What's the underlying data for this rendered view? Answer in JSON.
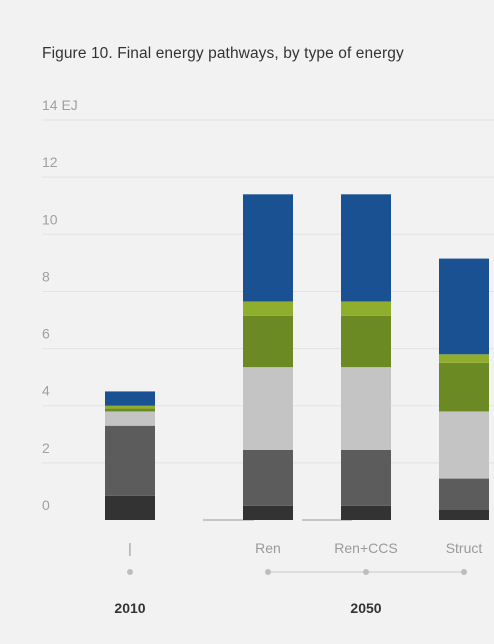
{
  "title": "Figure 10.  Final energy pathways, by type of energy",
  "chart_data": {
    "type": "bar",
    "stacked": true,
    "unit": "EJ",
    "ylim": [
      0,
      14
    ],
    "yticks": [
      0,
      2,
      4,
      6,
      8,
      10,
      12,
      14
    ],
    "grid": true,
    "categories": [
      "|",
      "Ren",
      "Ren+CCS",
      "Struct"
    ],
    "groups": [
      {
        "label": "2010",
        "categories": [
          "|"
        ]
      },
      {
        "label": "2050",
        "categories": [
          "Ren",
          "Ren+CCS",
          "Struct"
        ]
      }
    ],
    "series": [
      {
        "color": "#333333",
        "values": [
          0.85,
          0.5,
          0.5,
          0.35
        ]
      },
      {
        "color": "#5c5c5c",
        "values": [
          2.45,
          1.95,
          1.95,
          1.1
        ]
      },
      {
        "color": "#c4c4c4",
        "values": [
          0.5,
          2.9,
          2.9,
          2.35
        ]
      },
      {
        "color": "#6b8a23",
        "values": [
          0.1,
          1.8,
          1.8,
          1.7
        ]
      },
      {
        "color": "#8fae2e",
        "values": [
          0.1,
          0.5,
          0.5,
          0.3
        ]
      },
      {
        "color": "#1a5193",
        "values": [
          0.5,
          3.75,
          3.75,
          3.35
        ]
      }
    ]
  }
}
